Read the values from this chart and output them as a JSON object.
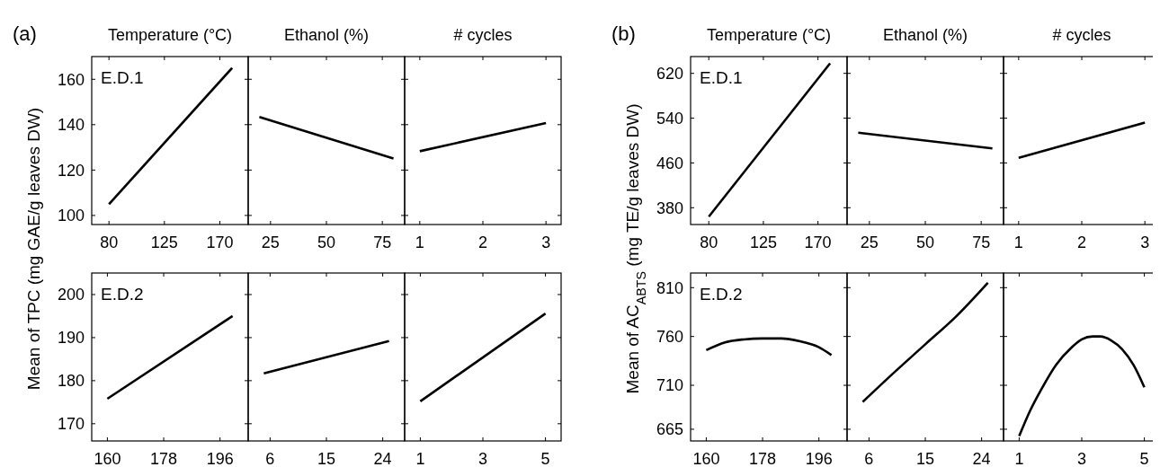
{
  "chart_data": [
    {
      "type": "line",
      "title": "Temperature (°C)",
      "ylabel": "Mean of TPC (mg GAE/g leaves DW)",
      "annotations": [
        "(a)",
        "E.D.1"
      ],
      "x": [
        80,
        180
      ],
      "values": [
        105,
        165
      ],
      "color": "#000000",
      "xlim": [
        66,
        193
      ],
      "xticks": [
        80,
        125,
        170
      ],
      "ylim": [
        96,
        170
      ],
      "yticks": [
        100,
        120,
        140,
        160
      ]
    },
    {
      "type": "line",
      "title": "Ethanol (%)",
      "x": [
        20,
        80
      ],
      "values": [
        143.4,
        125.1
      ],
      "color": "#000000",
      "xlim": [
        15,
        85
      ],
      "xticks": [
        25,
        50,
        75
      ],
      "ylim": [
        96,
        170
      ],
      "yticks": [
        100,
        120,
        140,
        160
      ],
      "tick_labels": "x"
    },
    {
      "type": "line",
      "title": "# cycles",
      "x": [
        1,
        3
      ],
      "values": [
        128.3,
        140.7
      ],
      "color": "#000000",
      "xlim": [
        0.76,
        3.24
      ],
      "xticks": [
        1,
        2,
        3
      ],
      "ylim": [
        96,
        170
      ],
      "yticks": [
        100,
        120,
        140,
        160
      ],
      "tick_labels": "x"
    },
    {
      "type": "line",
      "annotations": [
        "E.D.2"
      ],
      "x": [
        160,
        200
      ],
      "values": [
        175.8,
        195
      ],
      "color": "#000000",
      "xlim": [
        155,
        205
      ],
      "xticks": [
        160,
        178,
        196
      ],
      "ylim": [
        166,
        205
      ],
      "yticks": [
        170,
        180,
        190,
        200
      ]
    },
    {
      "type": "line",
      "x": [
        5,
        25
      ],
      "values": [
        181.7,
        189.2
      ],
      "color": "#000000",
      "xlim": [
        2.5,
        27.5
      ],
      "xticks": [
        6,
        15,
        24
      ],
      "ylim": [
        166,
        205
      ],
      "yticks": [
        170,
        180,
        190,
        200
      ],
      "tick_labels": "x"
    },
    {
      "type": "line",
      "x": [
        1,
        5
      ],
      "values": [
        175.2,
        195.6
      ],
      "color": "#000000",
      "xlim": [
        0.5,
        5.5
      ],
      "xticks": [
        1,
        3,
        5
      ],
      "ylim": [
        166,
        205
      ],
      "yticks": [
        170,
        180,
        190,
        200
      ],
      "tick_labels": "x"
    },
    {
      "type": "line",
      "title": "Temperature (°C)",
      "ylabel": "Mean of AC$_{ABTS}$ (mg TE/g leaves DW)",
      "annotations": [
        "(b)",
        "E.D.1"
      ],
      "x": [
        80,
        180
      ],
      "values": [
        364,
        638
      ],
      "color": "#000000",
      "xlim": [
        65,
        194
      ],
      "xticks": [
        80,
        125,
        170
      ],
      "ylim": [
        350,
        650
      ],
      "yticks": [
        380,
        460,
        540,
        620
      ]
    },
    {
      "type": "line",
      "title": "Ethanol (%)",
      "x": [
        20,
        80
      ],
      "values": [
        514,
        486
      ],
      "color": "#000000",
      "xlim": [
        15,
        85
      ],
      "xticks": [
        25,
        50,
        75
      ],
      "ylim": [
        350,
        650
      ],
      "yticks": [
        380,
        460,
        540,
        620
      ],
      "tick_labels": "x"
    },
    {
      "type": "line",
      "title": "# cycles",
      "x": [
        1,
        3
      ],
      "values": [
        469,
        532
      ],
      "color": "#000000",
      "xlim": [
        0.76,
        3.24
      ],
      "xticks": [
        1,
        2,
        3
      ],
      "ylim": [
        350,
        650
      ],
      "yticks": [
        380,
        460,
        540,
        620
      ],
      "tick_labels": "x"
    },
    {
      "type": "line",
      "annotations": [
        "E.D.2"
      ],
      "x": [
        160,
        166,
        172,
        178,
        184,
        190,
        196,
        200
      ],
      "values": [
        746,
        754,
        757,
        758,
        758,
        755,
        749,
        741
      ],
      "color": "#000000",
      "xlim": [
        155,
        205
      ],
      "xticks": [
        160,
        178,
        196
      ],
      "ylim": [
        653,
        825
      ],
      "yticks": [
        665,
        710,
        760,
        810
      ]
    },
    {
      "type": "line",
      "x": [
        5,
        10,
        15,
        20,
        25
      ],
      "values": [
        693,
        723,
        752,
        781,
        815
      ],
      "color": "#000000",
      "xlim": [
        2.5,
        27.5
      ],
      "xticks": [
        6,
        15,
        24
      ],
      "ylim": [
        653,
        825
      ],
      "yticks": [
        665,
        710,
        760,
        810
      ],
      "tick_labels": "x"
    },
    {
      "type": "line",
      "x": [
        1,
        1.35,
        1.71,
        2.18,
        2.65,
        3,
        3.35,
        3.59,
        3.94,
        4.29,
        4.65,
        5
      ],
      "values": [
        658,
        684,
        706,
        731,
        748,
        757,
        760,
        760,
        756,
        747,
        731,
        708
      ],
      "color": "#000000",
      "xlim": [
        0.5,
        5.5
      ],
      "xticks": [
        1,
        3,
        5
      ],
      "ylim": [
        653,
        825
      ],
      "yticks": [
        665,
        710,
        760,
        810
      ],
      "tick_labels": "x"
    }
  ]
}
